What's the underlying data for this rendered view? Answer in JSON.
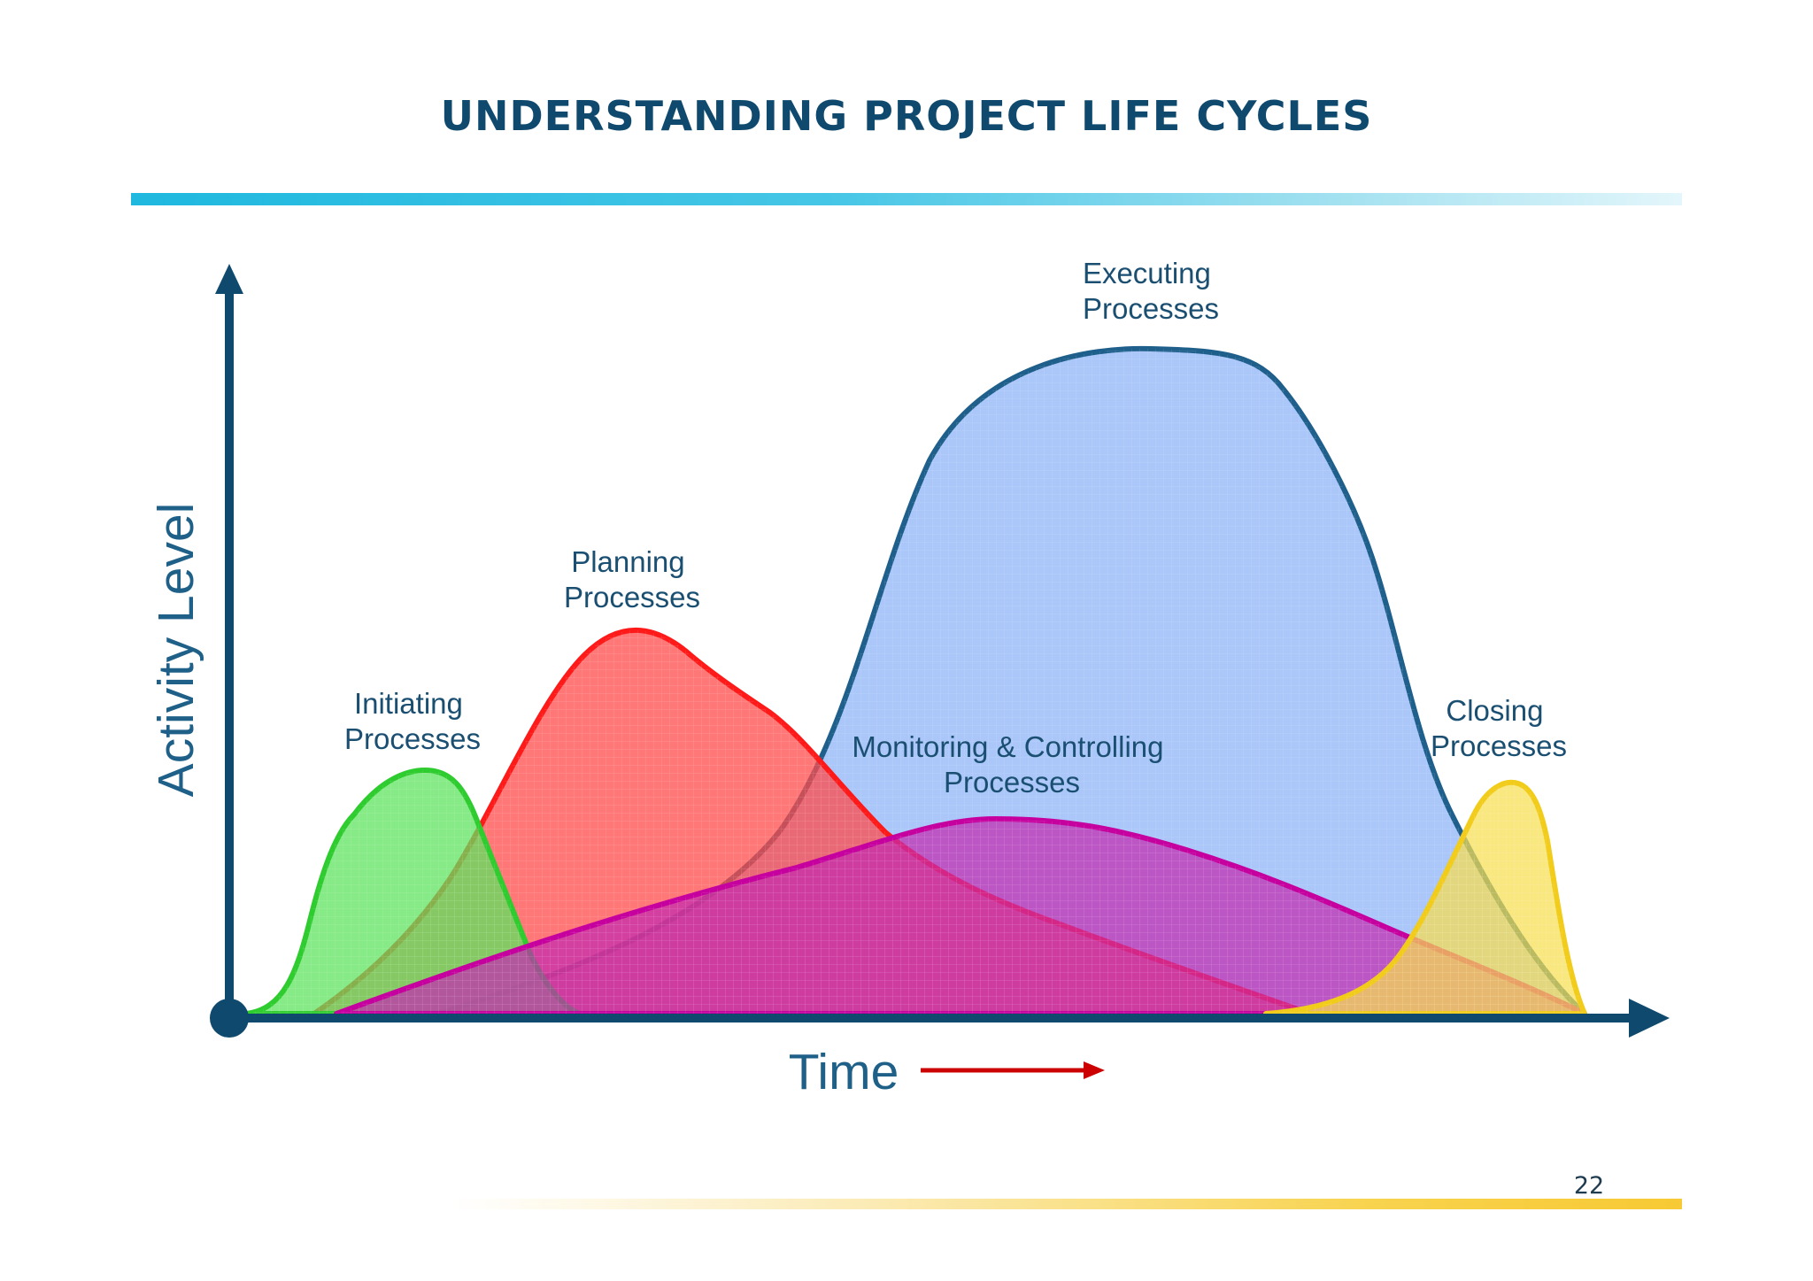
{
  "header": {
    "title": "UNDERSTANDING PROJECT LIFE CYCLES"
  },
  "diagram": {
    "y_axis_label": "Activity Level",
    "x_axis_label": "Time",
    "curves": [
      {
        "id": "initiating",
        "label_lines": [
          "Initiating",
          "Processes"
        ],
        "stroke": "#2ecc2e",
        "fill": "#5ee35e"
      },
      {
        "id": "planning",
        "label_lines": [
          "Planning",
          "Processes"
        ],
        "stroke": "#ff1a1a",
        "fill": "#ff4a4a"
      },
      {
        "id": "executing",
        "label_lines": [
          "Executing",
          "Processes"
        ],
        "stroke": "#1f5f8b",
        "fill": "#8fb4f7"
      },
      {
        "id": "monitoring",
        "label_lines": [
          "Monitoring & Controlling",
          "Processes"
        ],
        "stroke": "#c6009f",
        "fill": "#c42bb0"
      },
      {
        "id": "closing",
        "label_lines": [
          "Closing",
          "Processes"
        ],
        "stroke": "#f2cc1a",
        "fill": "#f7de4f"
      }
    ],
    "axis_color": "#0f4a6e",
    "time_arrow_color": "#cc0000"
  },
  "footer": {
    "page_number": "22"
  }
}
